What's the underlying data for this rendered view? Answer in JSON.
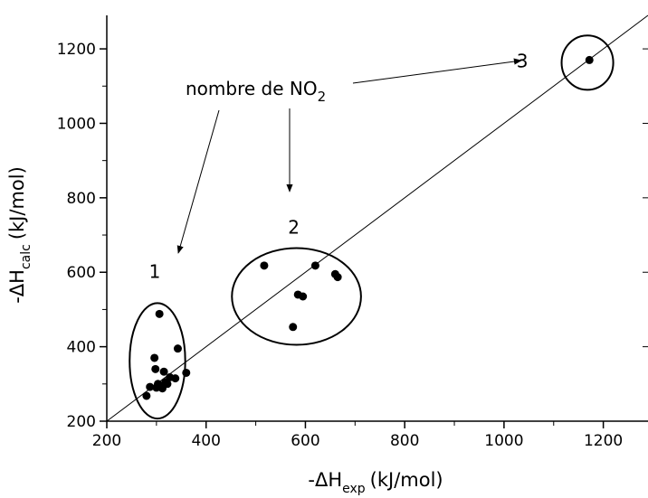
{
  "chart_data": {
    "type": "scatter",
    "title": "",
    "xlabel": "-ΔH_exp (kJ/mol)",
    "xlabel_parts": {
      "prefix": "-ΔH",
      "sub": "exp",
      "unit": "(kJ/mol)"
    },
    "ylabel": "-ΔH_calc (kJ/mol)",
    "ylabel_parts": {
      "prefix": "-ΔH",
      "sub": "calc",
      "unit": "(kJ/mol)"
    },
    "xlim": [
      200,
      1290
    ],
    "ylim": [
      200,
      1290
    ],
    "xticks": [
      "200",
      "400",
      "600",
      "800",
      "1000",
      "1200"
    ],
    "yticks": [
      "200",
      "400",
      "600",
      "800",
      "1000",
      "1200"
    ],
    "grid": false,
    "legend": "none",
    "series": [
      {
        "points": [
          {
            "x": 280,
            "y": 268
          },
          {
            "x": 287,
            "y": 292
          },
          {
            "x": 296,
            "y": 370
          },
          {
            "x": 298,
            "y": 340
          },
          {
            "x": 300,
            "y": 290
          },
          {
            "x": 303,
            "y": 300
          },
          {
            "x": 306,
            "y": 488
          },
          {
            "x": 309,
            "y": 295
          },
          {
            "x": 312,
            "y": 288
          },
          {
            "x": 315,
            "y": 333
          },
          {
            "x": 318,
            "y": 305
          },
          {
            "x": 322,
            "y": 300
          },
          {
            "x": 327,
            "y": 318
          },
          {
            "x": 338,
            "y": 315
          },
          {
            "x": 343,
            "y": 395
          },
          {
            "x": 360,
            "y": 330
          },
          {
            "x": 517,
            "y": 618
          },
          {
            "x": 575,
            "y": 453
          },
          {
            "x": 585,
            "y": 540
          },
          {
            "x": 595,
            "y": 535
          },
          {
            "x": 620,
            "y": 618
          },
          {
            "x": 660,
            "y": 595
          },
          {
            "x": 665,
            "y": 587
          },
          {
            "x": 1172,
            "y": 1170
          }
        ]
      }
    ],
    "reference_line": {
      "from": [
        200,
        200
      ],
      "to": [
        1290,
        1290
      ]
    },
    "groups": [
      {
        "label": "1",
        "center": [
          302,
          362
        ],
        "radius": [
          56,
          155
        ]
      },
      {
        "label": "2",
        "center": [
          582,
          535
        ],
        "radius": [
          130,
          130
        ]
      },
      {
        "label": "3",
        "center": [
          1168,
          1163
        ],
        "radius": [
          52,
          73
        ]
      }
    ],
    "annotation": {
      "text_main": "nombre de NO",
      "text_sub": "2"
    }
  }
}
